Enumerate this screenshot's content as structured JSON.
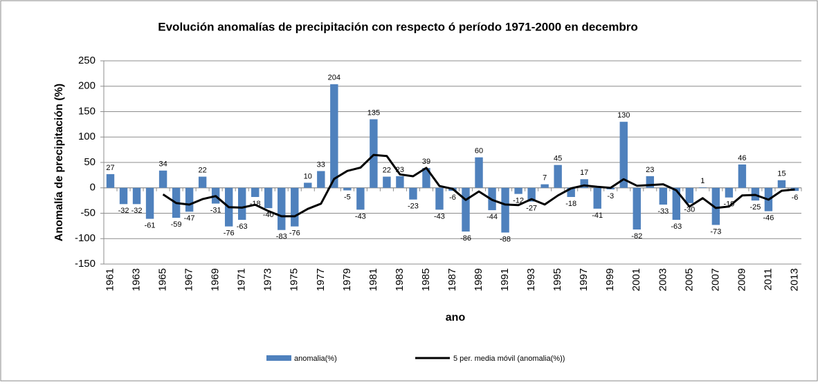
{
  "chart_data": {
    "type": "bar",
    "title": "Evolución  anomalías de  precipitación con respecto ó período 1971-2000 en decembro",
    "x_label": "ano",
    "y_label": "Anomalía de precipitación  (%)",
    "categories": [
      "1961",
      null,
      "1963",
      null,
      "1965",
      null,
      "1967",
      null,
      "1969",
      null,
      "1971",
      null,
      "1973",
      null,
      "1975",
      null,
      "1977",
      null,
      "1979",
      null,
      "1981",
      null,
      "1983",
      null,
      "1985",
      null,
      "1987",
      null,
      "1989",
      null,
      "1991",
      null,
      "1993",
      null,
      "1995",
      null,
      "1997",
      null,
      "1999",
      null,
      "2001",
      null,
      "2003",
      null,
      "2005",
      null,
      "2007",
      null,
      "2009",
      null,
      "2011",
      null,
      "2013"
    ],
    "series": [
      {
        "name": "anomalia(%)",
        "type": "bar",
        "color": "#4f81bd",
        "values": [
          27,
          -32,
          -32,
          -61,
          34,
          -59,
          -47,
          22,
          -31,
          -76,
          -63,
          -18,
          -40,
          -83,
          -76,
          10,
          33,
          204,
          -5,
          -43,
          135,
          22,
          23,
          -23,
          39,
          -43,
          -6,
          -86,
          60,
          -44,
          -88,
          -12,
          -27,
          7,
          45,
          -18,
          17,
          -41,
          -3,
          130,
          -82,
          23,
          -33,
          -63,
          -30,
          1,
          -73,
          -19,
          46,
          -25,
          -46,
          15,
          -6
        ]
      },
      {
        "name": "5 per. media móvil (anomalia(%))",
        "type": "line",
        "color": "#000000",
        "values": [
          null,
          null,
          null,
          null,
          -12.8,
          -30,
          -33,
          -22.2,
          -16.2,
          -38.2,
          -39,
          -33.2,
          -45.6,
          -56,
          -56,
          -41.4,
          -31.2,
          17.6,
          33.2,
          39.8,
          64.8,
          62.6,
          26.4,
          22.8,
          39.2,
          3.6,
          -2,
          -23.8,
          -7.2,
          -23.8,
          -32.8,
          -34,
          -22.2,
          -32.8,
          -15,
          -1,
          4.8,
          2,
          0,
          17,
          4.2,
          5.4,
          7,
          -5,
          -37,
          -20.4,
          -39.6,
          -36.8,
          -15,
          -14,
          -23.4,
          -5.8,
          -3.2
        ]
      }
    ],
    "ylim": [
      -150,
      250
    ],
    "yticks": [
      -150,
      -100,
      -50,
      0,
      50,
      100,
      150,
      200,
      250
    ],
    "grid": true,
    "legend": "bottom"
  }
}
